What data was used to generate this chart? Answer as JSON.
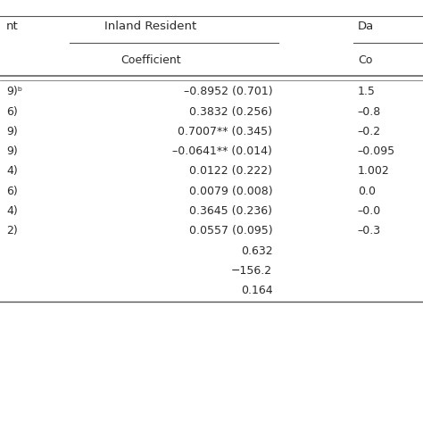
{
  "col_headers": [
    "nt",
    "Inland Resident",
    "Da"
  ],
  "sub_headers": [
    "",
    "Coefficient",
    "Co"
  ],
  "rows": [
    [
      "9)ᵇ",
      "–0.8952 (0.701)",
      "1.5"
    ],
    [
      "6)",
      "0.3832 (0.256)",
      "–0.8"
    ],
    [
      "9)",
      "0.7007** (0.345)",
      "–0.2"
    ],
    [
      "9)",
      "–0.0641** (0.014)",
      "–0.095"
    ],
    [
      "4)",
      "0.0122 (0.222)",
      "1.002"
    ],
    [
      "6)",
      "0.0079 (0.008)",
      "0.0"
    ],
    [
      "4)",
      "0.3645 (0.236)",
      "–0.0"
    ],
    [
      "2)",
      "0.0557 (0.095)",
      "–0.3"
    ],
    [
      "",
      "0.632",
      ""
    ],
    [
      "",
      "−156.2",
      ""
    ],
    [
      "",
      "0.164",
      ""
    ]
  ],
  "bg_color": "#ffffff",
  "text_color": "#2a2a2a",
  "line_color": "#555555",
  "font_size": 9.0,
  "header_font_size": 9.5,
  "figsize": [
    4.74,
    4.74
  ],
  "dpi": 100
}
